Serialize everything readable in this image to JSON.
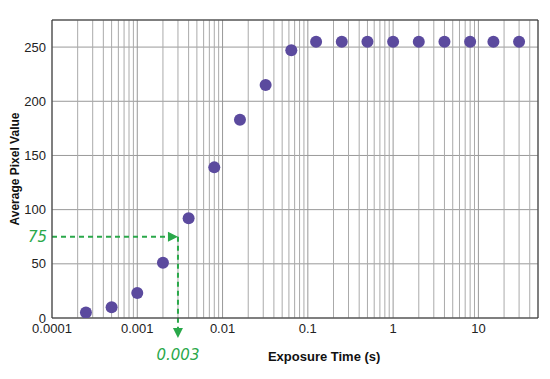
{
  "chart_data": {
    "type": "scatter",
    "x_label": "Exposure Time (s)",
    "y_label": "Average Pixel Value",
    "x": [
      0.00025,
      0.0005,
      0.001,
      0.002,
      0.004,
      0.008,
      0.016,
      0.032,
      0.064,
      0.125,
      0.25,
      0.5,
      1,
      2,
      4,
      8,
      15,
      30
    ],
    "values": [
      5,
      10,
      23,
      51,
      92,
      139,
      183,
      215,
      247,
      255,
      255,
      255,
      255,
      255,
      255,
      255,
      255,
      255
    ],
    "color": "#5b4a9e",
    "marker": "circle",
    "log": "x",
    "xlim": [
      0.0001,
      50
    ],
    "xticks": [
      0.0001,
      0.001,
      0.01,
      0.1,
      1,
      10
    ],
    "ylim": [
      0,
      275
    ],
    "yticks": [
      0,
      50,
      100,
      150,
      200,
      250
    ],
    "grid": true,
    "annotations": [
      {
        "text": "75",
        "y": 75
      },
      {
        "text": "0.003",
        "x": 0.003
      }
    ]
  }
}
